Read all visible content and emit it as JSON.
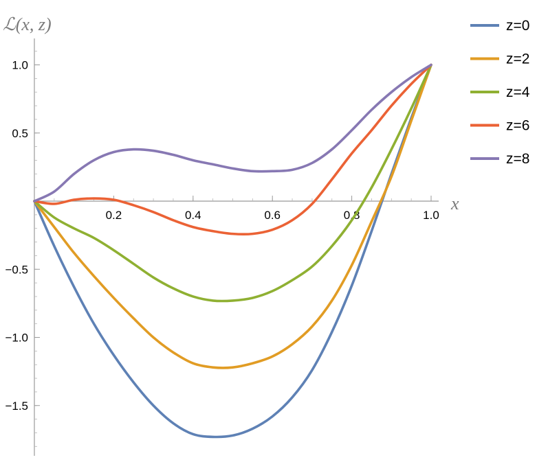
{
  "chart_data": {
    "type": "line",
    "title": "",
    "xlabel": "x",
    "ylabel": "ℒ(x, z)",
    "xlim": [
      0,
      1.0
    ],
    "ylim": [
      -1.8,
      1.15
    ],
    "x_ticks": [
      {
        "value": 0.2,
        "label": "0.2"
      },
      {
        "value": 0.4,
        "label": "0.4"
      },
      {
        "value": 0.6,
        "label": "0.6"
      },
      {
        "value": 0.8,
        "label": "0.8"
      },
      {
        "value": 1.0,
        "label": "1.0"
      }
    ],
    "y_ticks": [
      {
        "value": 1.0,
        "label": "1.0"
      },
      {
        "value": 0.5,
        "label": "0.5"
      },
      {
        "value": -0.5,
        "label": "−0.5"
      },
      {
        "value": -1.0,
        "label": "−1.0"
      },
      {
        "value": -1.5,
        "label": "−1.5"
      }
    ],
    "x": [
      0,
      0.05,
      0.1,
      0.15,
      0.2,
      0.25,
      0.3,
      0.35,
      0.4,
      0.45,
      0.5,
      0.55,
      0.6,
      0.65,
      0.7,
      0.75,
      0.8,
      0.85,
      0.9,
      0.95,
      1.0
    ],
    "series": [
      {
        "name": "z=0",
        "label": "z=0",
        "color": "#5e81b5",
        "values": [
          0,
          -0.33,
          -0.63,
          -0.9,
          -1.13,
          -1.33,
          -1.5,
          -1.63,
          -1.71,
          -1.73,
          -1.72,
          -1.67,
          -1.58,
          -1.44,
          -1.24,
          -0.96,
          -0.62,
          -0.22,
          0.2,
          0.61,
          1.0
        ]
      },
      {
        "name": "z=2",
        "label": "z=2",
        "color": "#e19c24",
        "values": [
          0,
          -0.19,
          -0.38,
          -0.55,
          -0.71,
          -0.86,
          -1.0,
          -1.11,
          -1.19,
          -1.22,
          -1.22,
          -1.19,
          -1.14,
          -1.05,
          -0.92,
          -0.73,
          -0.47,
          -0.15,
          0.18,
          0.59,
          1.0
        ]
      },
      {
        "name": "z=4",
        "label": "z=4",
        "color": "#8fb032",
        "values": [
          0,
          -0.12,
          -0.2,
          -0.27,
          -0.36,
          -0.46,
          -0.56,
          -0.64,
          -0.7,
          -0.73,
          -0.73,
          -0.71,
          -0.66,
          -0.58,
          -0.48,
          -0.33,
          -0.14,
          0.1,
          0.38,
          0.68,
          1.0
        ]
      },
      {
        "name": "z=6",
        "label": "z=6",
        "color": "#eb6235",
        "values": [
          0,
          -0.02,
          0.01,
          0.02,
          0.01,
          -0.03,
          -0.08,
          -0.14,
          -0.19,
          -0.22,
          -0.24,
          -0.24,
          -0.21,
          -0.14,
          -0.02,
          0.16,
          0.35,
          0.52,
          0.7,
          0.86,
          1.0
        ]
      },
      {
        "name": "z=8",
        "label": "z=8",
        "color": "#8778b3",
        "values": [
          0,
          0.07,
          0.2,
          0.3,
          0.36,
          0.38,
          0.37,
          0.34,
          0.3,
          0.27,
          0.24,
          0.22,
          0.22,
          0.23,
          0.28,
          0.38,
          0.52,
          0.67,
          0.8,
          0.91,
          1.0
        ]
      }
    ],
    "legend": "right",
    "grid": false
  }
}
